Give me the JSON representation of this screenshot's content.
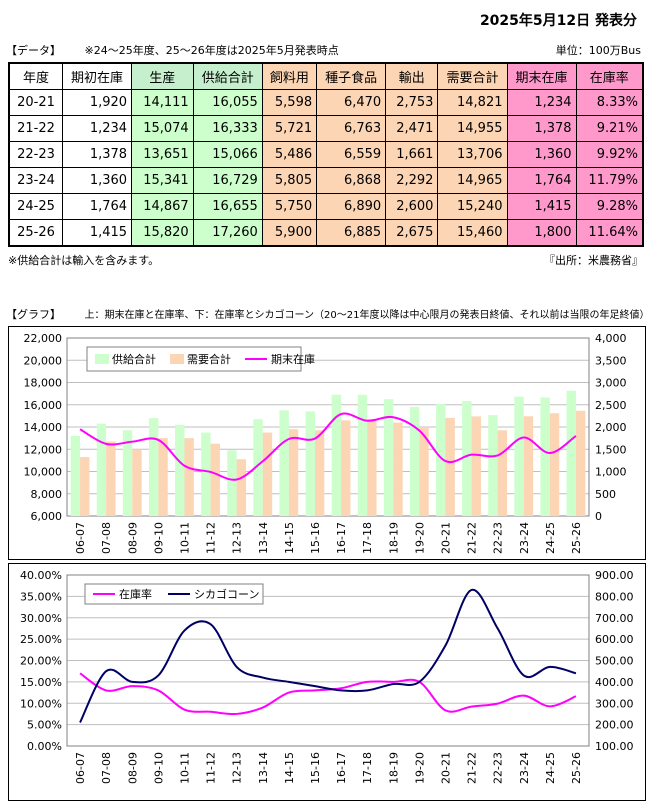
{
  "header": {
    "title": "2025年5月12日 発表分",
    "section_data": "【データ】",
    "note": "※24～25年度、25～26年度は2025年5月発表時点",
    "unit": "単位：100万Bus"
  },
  "table": {
    "columns": [
      "年度",
      "期初在庫",
      "生産",
      "供給合計",
      "飼料用",
      "種子食品",
      "輸出",
      "需要合計",
      "期末在庫",
      "在庫率"
    ],
    "rows": [
      [
        "20-21",
        "1,920",
        "14,111",
        "16,055",
        "5,598",
        "6,470",
        "2,753",
        "14,821",
        "1,234",
        "8.33%"
      ],
      [
        "21-22",
        "1,234",
        "15,074",
        "16,333",
        "5,721",
        "6,763",
        "2,471",
        "14,955",
        "1,378",
        "9.21%"
      ],
      [
        "22-23",
        "1,378",
        "13,651",
        "15,066",
        "5,486",
        "6,559",
        "1,661",
        "13,706",
        "1,360",
        "9.92%"
      ],
      [
        "23-24",
        "1,360",
        "15,341",
        "16,729",
        "5,805",
        "6,868",
        "2,292",
        "14,965",
        "1,764",
        "11.79%"
      ],
      [
        "24-25",
        "1,764",
        "14,867",
        "16,655",
        "5,750",
        "6,890",
        "2,600",
        "15,240",
        "1,415",
        "9.28%"
      ],
      [
        "25-26",
        "1,415",
        "15,820",
        "17,260",
        "5,900",
        "6,885",
        "2,675",
        "15,460",
        "1,800",
        "11.64%"
      ]
    ],
    "footnote": "※供給合計は輸入を含みます。",
    "source": "『出所：米農務省』"
  },
  "graph": {
    "section": "【グラフ】",
    "description": "上：期末在庫と在庫率、下：在庫率とシカゴコーン（20～21年度以降は中心限月の発表日終値、それ以前は当限の年足終値）"
  },
  "colors": {
    "supply": "#ccffcc",
    "demand": "#fcd5b4",
    "ending_stock": "#ff00ff",
    "stock_ratio": "#ff00ff",
    "chicago": "#000066"
  },
  "chart_data": [
    {
      "type": "bar",
      "categories": [
        "06-07",
        "07-08",
        "08-09",
        "09-10",
        "10-11",
        "11-12",
        "12-13",
        "13-14",
        "14-15",
        "15-16",
        "16-17",
        "17-18",
        "18-19",
        "19-20",
        "20-21",
        "21-22",
        "22-23",
        "23-24",
        "24-25",
        "25-26"
      ],
      "series": [
        {
          "name": "供給合計",
          "type": "bar",
          "axis": "left",
          "values": [
            13200,
            14300,
            13700,
            14800,
            14200,
            13500,
            11900,
            14700,
            15500,
            15400,
            16900,
            16900,
            16500,
            15800,
            16055,
            16333,
            15066,
            16729,
            16655,
            17260
          ]
        },
        {
          "name": "需要合計",
          "type": "bar",
          "axis": "left",
          "values": [
            11300,
            12700,
            12000,
            13000,
            13000,
            12500,
            11100,
            13500,
            13800,
            13700,
            14600,
            14700,
            14400,
            14000,
            14821,
            14955,
            13706,
            14965,
            15240,
            15460
          ]
        },
        {
          "name": "期末在庫",
          "type": "line",
          "axis": "right",
          "values": [
            1950,
            1620,
            1670,
            1710,
            1130,
            990,
            820,
            1230,
            1730,
            1740,
            2290,
            2140,
            2220,
            1920,
            1234,
            1378,
            1360,
            1764,
            1415,
            1800
          ]
        }
      ],
      "ylim_left": [
        6000,
        22000
      ],
      "yticks_left": [
        "6,000",
        "8,000",
        "10,000",
        "12,000",
        "14,000",
        "16,000",
        "18,000",
        "20,000",
        "22,000"
      ],
      "ylim_right": [
        0,
        4000
      ],
      "yticks_right": [
        "0",
        "500",
        "1,000",
        "1,500",
        "2,000",
        "2,500",
        "3,000",
        "3,500",
        "4,000"
      ],
      "legend_position": "top-left",
      "grid": true
    },
    {
      "type": "line",
      "categories": [
        "06-07",
        "07-08",
        "08-09",
        "09-10",
        "10-11",
        "11-12",
        "12-13",
        "13-14",
        "14-15",
        "15-16",
        "16-17",
        "17-18",
        "18-19",
        "19-20",
        "20-21",
        "21-22",
        "22-23",
        "23-24",
        "24-25",
        "25-26"
      ],
      "series": [
        {
          "name": "在庫率",
          "axis": "left",
          "values": [
            0.17,
            0.13,
            0.14,
            0.13,
            0.085,
            0.08,
            0.075,
            0.09,
            0.125,
            0.13,
            0.135,
            0.15,
            0.15,
            0.15,
            0.0833,
            0.0921,
            0.0992,
            0.1179,
            0.0928,
            0.1164
          ]
        },
        {
          "name": "シカゴコーン",
          "axis": "right",
          "values": [
            210,
            450,
            400,
            430,
            640,
            670,
            470,
            420,
            400,
            380,
            360,
            360,
            390,
            400,
            570,
            830,
            650,
            430,
            470,
            440
          ]
        }
      ],
      "ylim_left": [
        0,
        0.4
      ],
      "yticks_left": [
        "0.00%",
        "5.00%",
        "10.00%",
        "15.00%",
        "20.00%",
        "25.00%",
        "30.00%",
        "35.00%",
        "40.00%"
      ],
      "ylim_right": [
        100,
        900
      ],
      "yticks_right": [
        "100.00",
        "200.00",
        "300.00",
        "400.00",
        "500.00",
        "600.00",
        "700.00",
        "800.00",
        "900.00"
      ],
      "legend_position": "top-left",
      "grid": true
    }
  ]
}
